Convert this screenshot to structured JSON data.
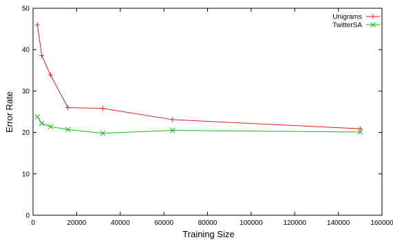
{
  "chart_data": {
    "type": "line",
    "xlabel": "Training Size",
    "ylabel": "Error Rate",
    "xlim": [
      0,
      160000
    ],
    "ylim": [
      0,
      50
    ],
    "xticks": [
      0,
      20000,
      40000,
      60000,
      80000,
      100000,
      120000,
      140000,
      160000
    ],
    "yticks": [
      0,
      10,
      20,
      30,
      40,
      50
    ],
    "grid": false,
    "legend_position": "top-right",
    "series": [
      {
        "name": "Unigrams",
        "color": "#e3191c",
        "marker": "plus",
        "x": [
          2000,
          4000,
          8000,
          16000,
          32000,
          64000,
          150000
        ],
        "y": [
          46,
          38.6,
          33.9,
          26.0,
          25.8,
          23.1,
          20.9
        ]
      },
      {
        "name": "TwitterSA",
        "color": "#11b51f",
        "marker": "cross",
        "x": [
          2000,
          4000,
          8000,
          16000,
          32000,
          64000,
          150000
        ],
        "y": [
          23.8,
          22.2,
          21.4,
          20.7,
          19.8,
          20.5,
          20.1
        ]
      }
    ]
  }
}
